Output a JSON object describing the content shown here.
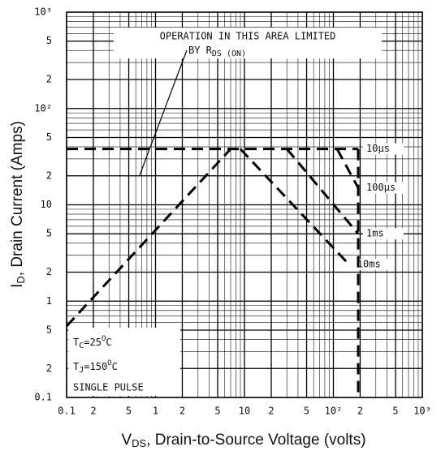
{
  "chart_data": {
    "type": "line",
    "xlabel": [
      "V",
      "DS",
      ", Drain-to-Source Voltage (volts)"
    ],
    "ylabel": [
      "I",
      "D",
      ", Drain Current (Amps)"
    ],
    "annotation": [
      "OPERATION IN THIS AREA LIMITED",
      "BY R",
      "DS (ON)"
    ],
    "conditions": [
      [
        "T",
        "C",
        "=25",
        "O",
        "C"
      ],
      [
        "T",
        "J",
        "=150",
        "O",
        "C"
      ],
      [
        "SINGLE PULSE"
      ]
    ],
    "xscale": "log",
    "yscale": "log",
    "grid": true,
    "xlim": [
      0.1,
      1000
    ],
    "ylim": [
      0.1,
      1000
    ],
    "xticks": [
      0.1,
      {
        "value": 0.2,
        "label": "2"
      },
      {
        "value": 0.5,
        "label": "5"
      },
      1,
      2,
      5,
      10,
      {
        "value": 20,
        "label": "2"
      },
      {
        "value": 50,
        "label": "5"
      },
      {
        "value": 100,
        "label": "10²"
      },
      {
        "value": 200,
        "label": "2"
      },
      {
        "value": 500,
        "label": "5"
      },
      {
        "value": 1000,
        "label": "10³"
      }
    ],
    "yticks": [
      0.1,
      {
        "value": 0.2,
        "label": "2"
      },
      {
        "value": 0.5,
        "label": "5"
      },
      1,
      2,
      5,
      10,
      {
        "value": 20,
        "label": "2"
      },
      {
        "value": 50,
        "label": "5"
      },
      {
        "value": 100,
        "label": "10²"
      },
      {
        "value": 200,
        "label": "2"
      },
      {
        "value": 500,
        "label": "5"
      },
      {
        "value": 1000,
        "label": "10³"
      }
    ],
    "series": [
      {
        "name": "10µs",
        "color": "#000000",
        "x": [
          0.1,
          190
        ],
        "values": [
          38,
          38
        ]
      },
      {
        "name": "100µs",
        "color": "#000000",
        "x": [
          110,
          190
        ],
        "values": [
          38,
          15
        ]
      },
      {
        "name": "1ms",
        "color": "#000000",
        "x": [
          30,
          190
        ],
        "values": [
          38,
          5
        ]
      },
      {
        "name": "10ms",
        "color": "#000000",
        "x": [
          9,
          150
        ],
        "values": [
          38,
          2.4
        ]
      },
      {
        "color": "#000000",
        "x": [
          0.1,
          7
        ],
        "values": [
          0.55,
          38
        ]
      },
      {
        "color": "#000000",
        "x": [
          190,
          190
        ],
        "values": [
          38,
          0.1
        ]
      }
    ]
  }
}
